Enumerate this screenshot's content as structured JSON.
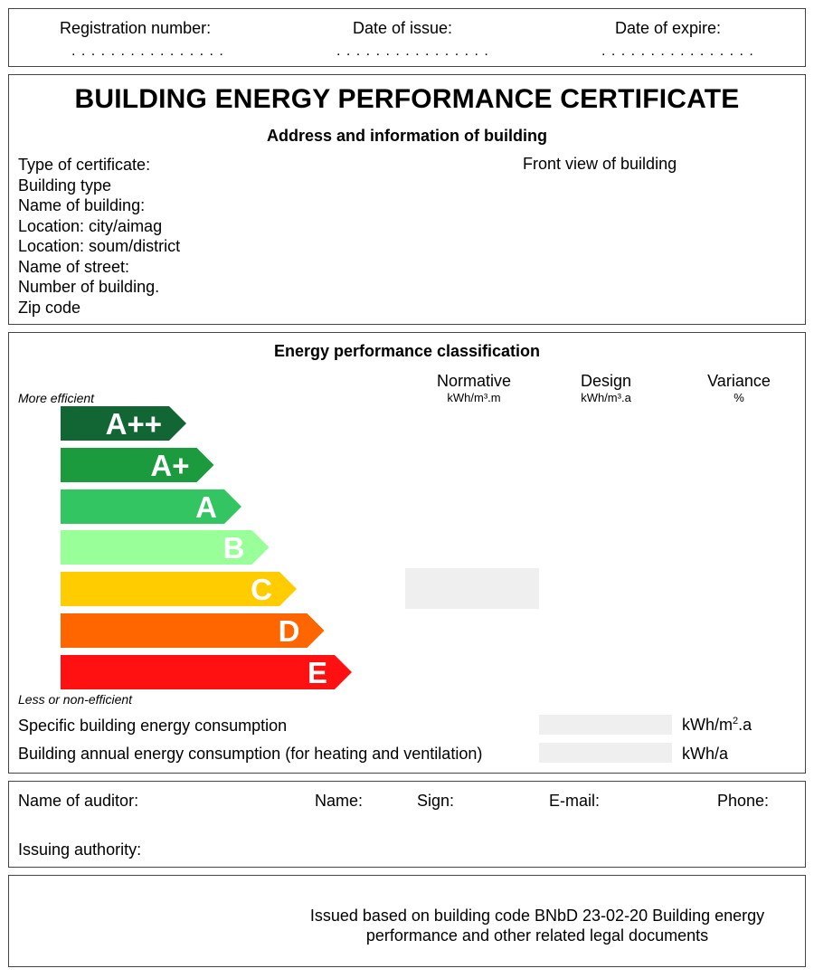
{
  "header": {
    "registration_label": "Registration number:",
    "issue_label": "Date of issue:",
    "expire_label": "Date of expire:",
    "dots": ". . . . . . . . . . . . . . . ."
  },
  "certificate": {
    "title": "BUILDING ENERGY PERFORMANCE CERTIFICATE",
    "subtitle": "Address and information of building",
    "fields": [
      "Type of certificate:",
      "Building type",
      "Name of building:",
      "Location: city/aimag",
      "Location: soum/district",
      "Name of street:",
      "Number of building.",
      "Zip code"
    ],
    "front_view_label": "Front view of building"
  },
  "classification": {
    "title": "Energy performance classification",
    "more_efficient": "More efficient",
    "less_efficient": "Less or non-efficient",
    "columns": [
      {
        "name": "Normative",
        "unit": "kWh/m³.m"
      },
      {
        "name": "Design",
        "unit": "kWh/m³.a"
      },
      {
        "name": "Variance",
        "unit": "%"
      }
    ],
    "classes": [
      {
        "label": "A++",
        "color": "#116633"
      },
      {
        "label": "A+",
        "color": "#1b9a3e"
      },
      {
        "label": "A",
        "color": "#33c561"
      },
      {
        "label": "B",
        "color": "#99ff99"
      },
      {
        "label": "C",
        "color": "#ffcc00"
      },
      {
        "label": "D",
        "color": "#ff6600"
      },
      {
        "label": "E",
        "color": "#ff1111"
      }
    ],
    "specific_label": "Specific building energy consumption",
    "specific_unit_base": "kWh/m",
    "specific_unit_sup": "2",
    "specific_unit_tail": ".a",
    "annual_label": "Building annual energy consumption (for heating and ventilation)",
    "annual_unit": "kWh/a"
  },
  "auditor": {
    "name_of_auditor": "Name of auditor:",
    "name": "Name:",
    "sign": "Sign:",
    "email": "E-mail:",
    "phone": "Phone:",
    "issuing_authority": "Issuing authority:"
  },
  "footer": {
    "line1": "Issued based on building code BNbD 23-02-20 Building energy",
    "line2": "performance and other related legal documents"
  }
}
